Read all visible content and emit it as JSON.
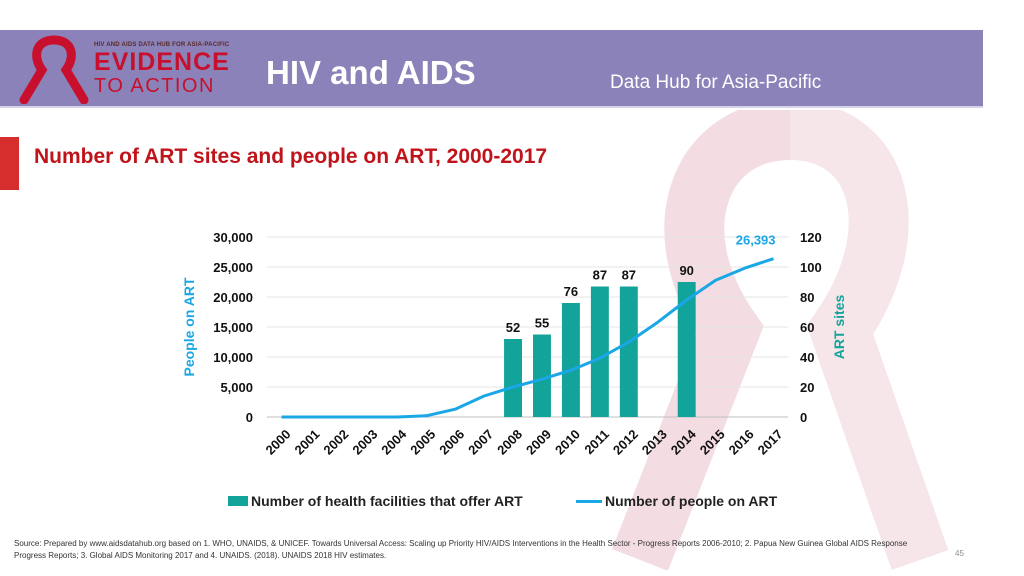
{
  "header": {
    "logo_small_text": "HIV AND AIDS DATA HUB FOR ASIA-PACIFIC",
    "logo_line1": "EVIDENCE",
    "logo_line2": "TO ACTION",
    "title": "HIV and AIDS",
    "subtitle": "Data Hub for Asia-Pacific"
  },
  "slide": {
    "title": "Number of ART sites and people on ART, 2000-2017",
    "source": "Source: Prepared by www.aidsdatahub.org based on 1. WHO, UNAIDS, & UNICEF.  Towards Universal Access: Scaling up Priority HIV/AIDS Interventions in the Health Sector - Progress  Reports 2006-2010; 2. Papua New Guinea Global AIDS Response Progress Reports; 3. Global AIDS Monitoring 2017 and 4. UNAIDS. (2018). UNAIDS 2018 HIV estimates.",
    "page_number": "45"
  },
  "colors": {
    "header_bg": "#8a82b8",
    "title_red": "#c0141b",
    "bar": "#12a39a",
    "line": "#1aa7e6"
  },
  "chart_data": {
    "type": "bar+line",
    "categories": [
      "2000",
      "2001",
      "2002",
      "2003",
      "2004",
      "2005",
      "2006",
      "2007",
      "2008",
      "2009",
      "2010",
      "2011",
      "2012",
      "2013",
      "2014",
      "2015",
      "2016",
      "2017"
    ],
    "series": [
      {
        "name": "Number of health facilities that offer ART",
        "type": "bar",
        "axis": "right",
        "values": [
          null,
          null,
          null,
          null,
          null,
          null,
          null,
          null,
          52,
          55,
          76,
          87,
          87,
          null,
          90,
          null,
          null,
          null
        ],
        "data_labels": [
          "",
          "",
          "",
          "",
          "",
          "",
          "",
          "",
          "52",
          "55",
          "76",
          "87",
          "87",
          "",
          "90",
          "",
          "",
          ""
        ]
      },
      {
        "name": "Number of people on ART",
        "type": "line",
        "axis": "left",
        "values": [
          0,
          0,
          0,
          0,
          0,
          200,
          1300,
          3500,
          5000,
          6300,
          7800,
          9800,
          12500,
          15800,
          19500,
          22800,
          24800,
          26393
        ],
        "data_labels": [
          "",
          "",
          "",
          "",
          "",
          "",
          "",
          "",
          "",
          "",
          "",
          "",
          "",
          "",
          "",
          "",
          "",
          "26,393"
        ]
      }
    ],
    "y_left": {
      "label": "People on ART",
      "range": [
        0,
        30000
      ],
      "ticks": [
        "0",
        "5,000",
        "10,000",
        "15,000",
        "20,000",
        "25,000",
        "30,000"
      ]
    },
    "y_right": {
      "label": "ART sites",
      "range": [
        0,
        120
      ],
      "ticks": [
        "0",
        "20",
        "40",
        "60",
        "80",
        "100",
        "120"
      ]
    },
    "grid": true,
    "legend_position": "bottom"
  }
}
